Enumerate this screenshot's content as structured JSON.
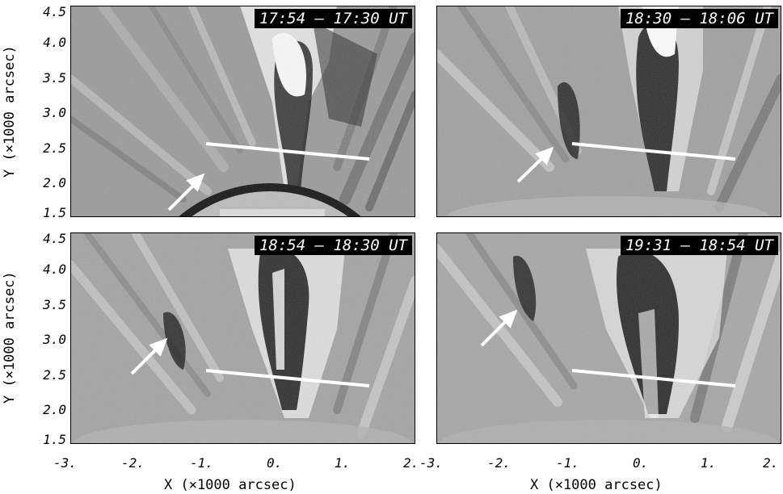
{
  "panels": [
    {
      "stamp": "17:54 – 17:30 UT"
    },
    {
      "stamp": "18:30 – 18:06 UT"
    },
    {
      "stamp": "18:54 – 18:30 UT"
    },
    {
      "stamp": "19:31 – 18:54 UT"
    }
  ],
  "axes": {
    "y_label_prefix": "Y (×1000 arcsec)",
    "x_label_prefix": "X (×1000 arcsec)",
    "y_ticks": [
      "4.5",
      "4.0",
      "3.5",
      "3.0",
      "2.5",
      "2.0",
      "1.5"
    ],
    "x_ticks_left": [
      "-3.",
      "-2.",
      "-1.",
      "0.",
      "1.",
      "2."
    ],
    "x_ticks_right": [
      "-3.",
      "-2.",
      "-1.",
      "0.",
      "1.",
      "2."
    ]
  },
  "icons": [
    "arrow-icon",
    "slit-line"
  ]
}
